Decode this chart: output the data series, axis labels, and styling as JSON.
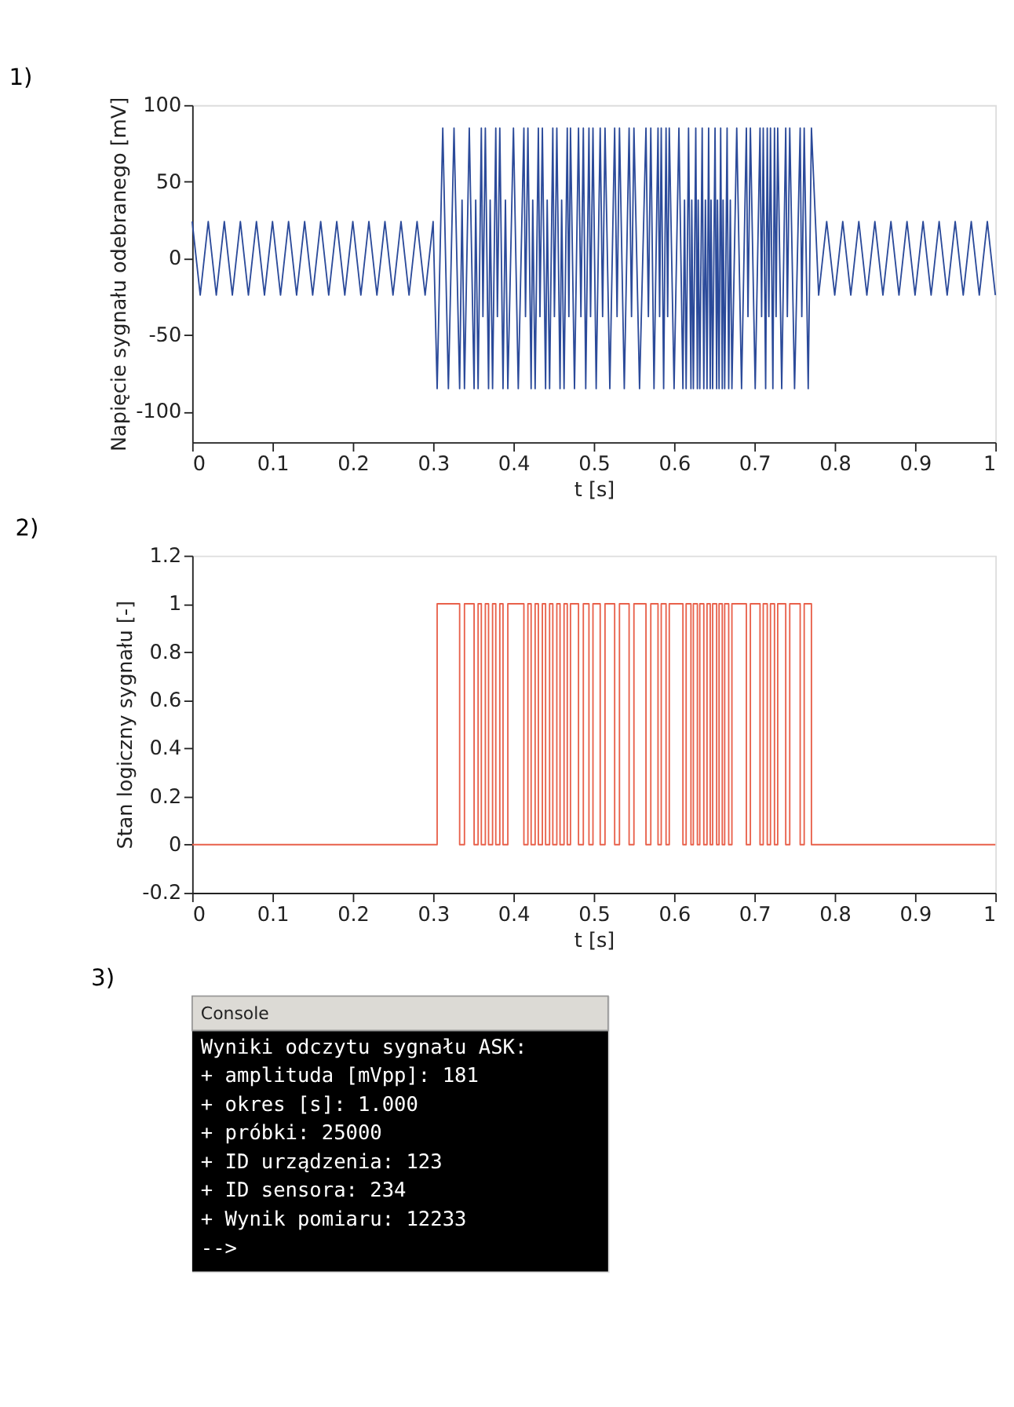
{
  "chart_data": [
    {
      "type": "line",
      "title": "1)",
      "xlabel": "t [s]",
      "ylabel": "Napięcie sygnału odebranego [mV]",
      "xlim": [
        0,
        1
      ],
      "ylim": [
        -120,
        100
      ],
      "xticks": [
        0,
        0.1,
        0.2,
        0.3,
        0.4,
        0.5,
        0.6,
        0.7,
        0.8,
        0.9,
        1
      ],
      "yticks": [
        -100,
        -50,
        0,
        50,
        100
      ],
      "grid": false,
      "series": [
        {
          "color": "#2b4a9a",
          "x": [
            0,
            0.01,
            0.02,
            0.03,
            0.04,
            0.05,
            0.06,
            0.07,
            0.08,
            0.09,
            0.1,
            0.11,
            0.12,
            0.13,
            0.14,
            0.15,
            0.16,
            0.17,
            0.18,
            0.19,
            0.2,
            0.21,
            0.22,
            0.23,
            0.24,
            0.25,
            0.26,
            0.27,
            0.28,
            0.29,
            0.3,
            0.305,
            0.312,
            0.319,
            0.326,
            0.333,
            0.336,
            0.339,
            0.345,
            0.351,
            0.353,
            0.356,
            0.36,
            0.362,
            0.365,
            0.369,
            0.371,
            0.374,
            0.378,
            0.38,
            0.383,
            0.387,
            0.39,
            0.393,
            0.4,
            0.406,
            0.413,
            0.415,
            0.418,
            0.422,
            0.424,
            0.427,
            0.431,
            0.433,
            0.436,
            0.44,
            0.442,
            0.445,
            0.449,
            0.451,
            0.454,
            0.458,
            0.46,
            0.463,
            0.467,
            0.469,
            0.471,
            0.476,
            0.481,
            0.484,
            0.487,
            0.49,
            0.494,
            0.496,
            0.499,
            0.503,
            0.508,
            0.511,
            0.514,
            0.52,
            0.526,
            0.529,
            0.532,
            0.538,
            0.544,
            0.547,
            0.55,
            0.557,
            0.565,
            0.568,
            0.571,
            0.575,
            0.58,
            0.582,
            0.584,
            0.587,
            0.59,
            0.592,
            0.594,
            0.6,
            0.606,
            0.611,
            0.613,
            0.615,
            0.618,
            0.621,
            0.622,
            0.624,
            0.627,
            0.629,
            0.63,
            0.632,
            0.635,
            0.637,
            0.639,
            0.641,
            0.643,
            0.645,
            0.646,
            0.648,
            0.651,
            0.653,
            0.654,
            0.656,
            0.658,
            0.66,
            0.661,
            0.663,
            0.666,
            0.668,
            0.67,
            0.672,
            0.678,
            0.684,
            0.69,
            0.692,
            0.695,
            0.701,
            0.707,
            0.709,
            0.711,
            0.714,
            0.716,
            0.718,
            0.72,
            0.723,
            0.725,
            0.727,
            0.729,
            0.734,
            0.739,
            0.741,
            0.744,
            0.75,
            0.757,
            0.759,
            0.762,
            0.767,
            0.771,
            0.78,
            0.79,
            0.8,
            0.81,
            0.82,
            0.83,
            0.84,
            0.85,
            0.86,
            0.87,
            0.88,
            0.89,
            0.9,
            0.91,
            0.92,
            0.93,
            0.94,
            0.95,
            0.96,
            0.97,
            0.98,
            0.99,
            1
          ],
          "values": [
            24,
            -24,
            24,
            -24,
            24,
            -24,
            24,
            -24,
            24,
            -24,
            24,
            -24,
            24,
            -24,
            24,
            -24,
            24,
            -24,
            24,
            -24,
            24,
            -24,
            24,
            -24,
            24,
            -24,
            24,
            -24,
            24,
            -24,
            24,
            -85,
            85,
            -85,
            85,
            -85,
            38,
            -85,
            85,
            -85,
            38,
            -85,
            85,
            -38,
            85,
            -85,
            38,
            -85,
            85,
            -38,
            85,
            -85,
            38,
            -85,
            85,
            -85,
            85,
            -38,
            85,
            -85,
            38,
            -85,
            85,
            -38,
            85,
            -85,
            38,
            -85,
            85,
            -38,
            85,
            -85,
            38,
            -85,
            85,
            -38,
            85,
            -85,
            85,
            -38,
            85,
            -85,
            85,
            -38,
            85,
            -85,
            85,
            -38,
            85,
            -85,
            85,
            -38,
            85,
            -85,
            85,
            -38,
            85,
            -85,
            85,
            -38,
            85,
            -85,
            85,
            -38,
            85,
            -85,
            85,
            -38,
            85,
            -85,
            85,
            -85,
            38,
            -85,
            85,
            -85,
            38,
            -85,
            85,
            -85,
            38,
            -85,
            85,
            -85,
            38,
            -85,
            85,
            -85,
            38,
            -85,
            85,
            -85,
            38,
            -85,
            85,
            -85,
            38,
            -85,
            85,
            -85,
            38,
            -85,
            85,
            -85,
            85,
            -38,
            85,
            -85,
            85,
            -38,
            85,
            -85,
            85,
            -38,
            85,
            -85,
            85,
            -38,
            85,
            -85,
            85,
            -38,
            85,
            -85,
            85,
            -38,
            85,
            -85,
            85,
            -24,
            24,
            -24,
            24,
            -24,
            24,
            -24,
            24,
            -24,
            24,
            -24,
            24,
            -24,
            24,
            -24,
            24,
            -24,
            24,
            -24,
            24,
            -24,
            24,
            -24
          ]
        }
      ]
    },
    {
      "type": "step",
      "title": "2)",
      "xlabel": "t [s]",
      "ylabel": "Stan logiczny sygnału [-]",
      "xlim": [
        0,
        1
      ],
      "ylim": [
        -0.2,
        1.2
      ],
      "xticks": [
        0,
        0.1,
        0.2,
        0.3,
        0.4,
        0.5,
        0.6,
        0.7,
        0.8,
        0.9,
        1
      ],
      "yticks": [
        -0.2,
        0,
        0.2,
        0.4,
        0.6,
        0.8,
        1,
        1.2
      ],
      "grid": false,
      "series": [
        {
          "color": "#e8604a",
          "x": [
            0,
            0.305,
            0.333,
            0.339,
            0.351,
            0.356,
            0.36,
            0.365,
            0.369,
            0.374,
            0.378,
            0.383,
            0.387,
            0.393,
            0.413,
            0.418,
            0.422,
            0.427,
            0.431,
            0.436,
            0.44,
            0.445,
            0.449,
            0.454,
            0.458,
            0.463,
            0.467,
            0.471,
            0.481,
            0.487,
            0.494,
            0.499,
            0.508,
            0.514,
            0.526,
            0.532,
            0.544,
            0.55,
            0.565,
            0.571,
            0.58,
            0.584,
            0.59,
            0.594,
            0.611,
            0.615,
            0.621,
            0.624,
            0.629,
            0.632,
            0.637,
            0.641,
            0.645,
            0.648,
            0.653,
            0.656,
            0.66,
            0.663,
            0.668,
            0.672,
            0.69,
            0.695,
            0.707,
            0.711,
            0.716,
            0.72,
            0.725,
            0.729,
            0.739,
            0.744,
            0.757,
            0.762,
            0.771,
            1
          ],
          "values": [
            0,
            1,
            0,
            1,
            0,
            1,
            0,
            1,
            0,
            1,
            0,
            1,
            0,
            1,
            0,
            1,
            0,
            1,
            0,
            1,
            0,
            1,
            0,
            1,
            0,
            1,
            0,
            1,
            0,
            1,
            0,
            1,
            0,
            1,
            0,
            1,
            0,
            1,
            0,
            1,
            0,
            1,
            0,
            1,
            0,
            1,
            0,
            1,
            0,
            1,
            0,
            1,
            0,
            1,
            0,
            1,
            0,
            1,
            0,
            1,
            0,
            1,
            0,
            1,
            0,
            1,
            0,
            1,
            0,
            1,
            0,
            1,
            0,
            0
          ]
        }
      ]
    },
    {
      "type": "other",
      "title": "3)",
      "subtitle": "Console",
      "annotations": [
        "Wyniki odczytu sygnału ASK:",
        "+ amplituda [mVpp]: 181",
        "+ okres [s]: 1.000",
        "+ próbki: 25000",
        "+ ID urządzenia: 123",
        "+ ID sensora: 234",
        "+ Wynik pomiaru: 12233",
        "-->"
      ]
    }
  ]
}
